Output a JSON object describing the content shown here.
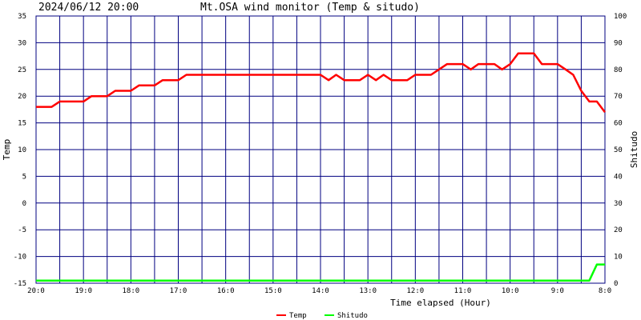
{
  "header": {
    "datetime": "2024/06/12 20:00",
    "title": "Mt.OSA wind monitor (Temp & situdo)"
  },
  "chart_data": {
    "type": "line",
    "title": "Mt.OSA wind monitor (Temp & situdo)",
    "xlabel": "Time elapsed (Hour)",
    "ylabel": "Temp",
    "y2label": "Shitudo",
    "x_ticks": [
      "20:0",
      "19:0",
      "18:0",
      "17:0",
      "16:0",
      "15:0",
      "14:0",
      "13:0",
      "12:0",
      "11:0",
      "10:0",
      "9:0",
      "8:0"
    ],
    "x_range": [
      0,
      12
    ],
    "y_ticks": [
      35,
      30,
      25,
      20,
      15,
      10,
      5,
      0,
      -5,
      -10,
      -15
    ],
    "ylim": [
      -15,
      35
    ],
    "y2_ticks": [
      100,
      90,
      80,
      70,
      60,
      50,
      40,
      30,
      20,
      10,
      0
    ],
    "y2lim": [
      0,
      100
    ],
    "grid": true,
    "legend_position": "bottom-center",
    "series": [
      {
        "name": "Temp",
        "axis": "left",
        "color": "#ff0000",
        "x": [
          0,
          0.33,
          0.5,
          1.0,
          1.17,
          1.5,
          1.67,
          2.0,
          2.17,
          2.5,
          2.67,
          3.0,
          3.17,
          3.5,
          4.0,
          5.0,
          6.0,
          6.17,
          6.33,
          6.5,
          6.83,
          7.0,
          7.17,
          7.33,
          7.5,
          7.83,
          8.0,
          8.33,
          8.5,
          8.67,
          9.0,
          9.17,
          9.33,
          9.67,
          9.83,
          10.0,
          10.17,
          10.5,
          10.67,
          11.0,
          11.17,
          11.33,
          11.5,
          11.67,
          11.83,
          12.0
        ],
        "y": [
          18,
          18,
          19,
          19,
          20,
          20,
          21,
          21,
          22,
          22,
          23,
          23,
          24,
          24,
          24,
          24,
          24,
          23,
          24,
          23,
          23,
          24,
          23,
          24,
          23,
          23,
          24,
          24,
          25,
          26,
          26,
          25,
          26,
          26,
          25,
          26,
          28,
          28,
          26,
          26,
          25,
          24,
          21,
          19,
          19,
          17
        ]
      },
      {
        "name": "Shitudo",
        "axis": "right",
        "color": "#00ff00",
        "x": [
          0,
          11.67,
          11.83,
          12.0
        ],
        "y": [
          1,
          1,
          7,
          7
        ]
      }
    ]
  },
  "legend": [
    {
      "label": "Temp",
      "color": "#ff0000"
    },
    {
      "label": "Shitudo",
      "color": "#00ff00"
    }
  ]
}
